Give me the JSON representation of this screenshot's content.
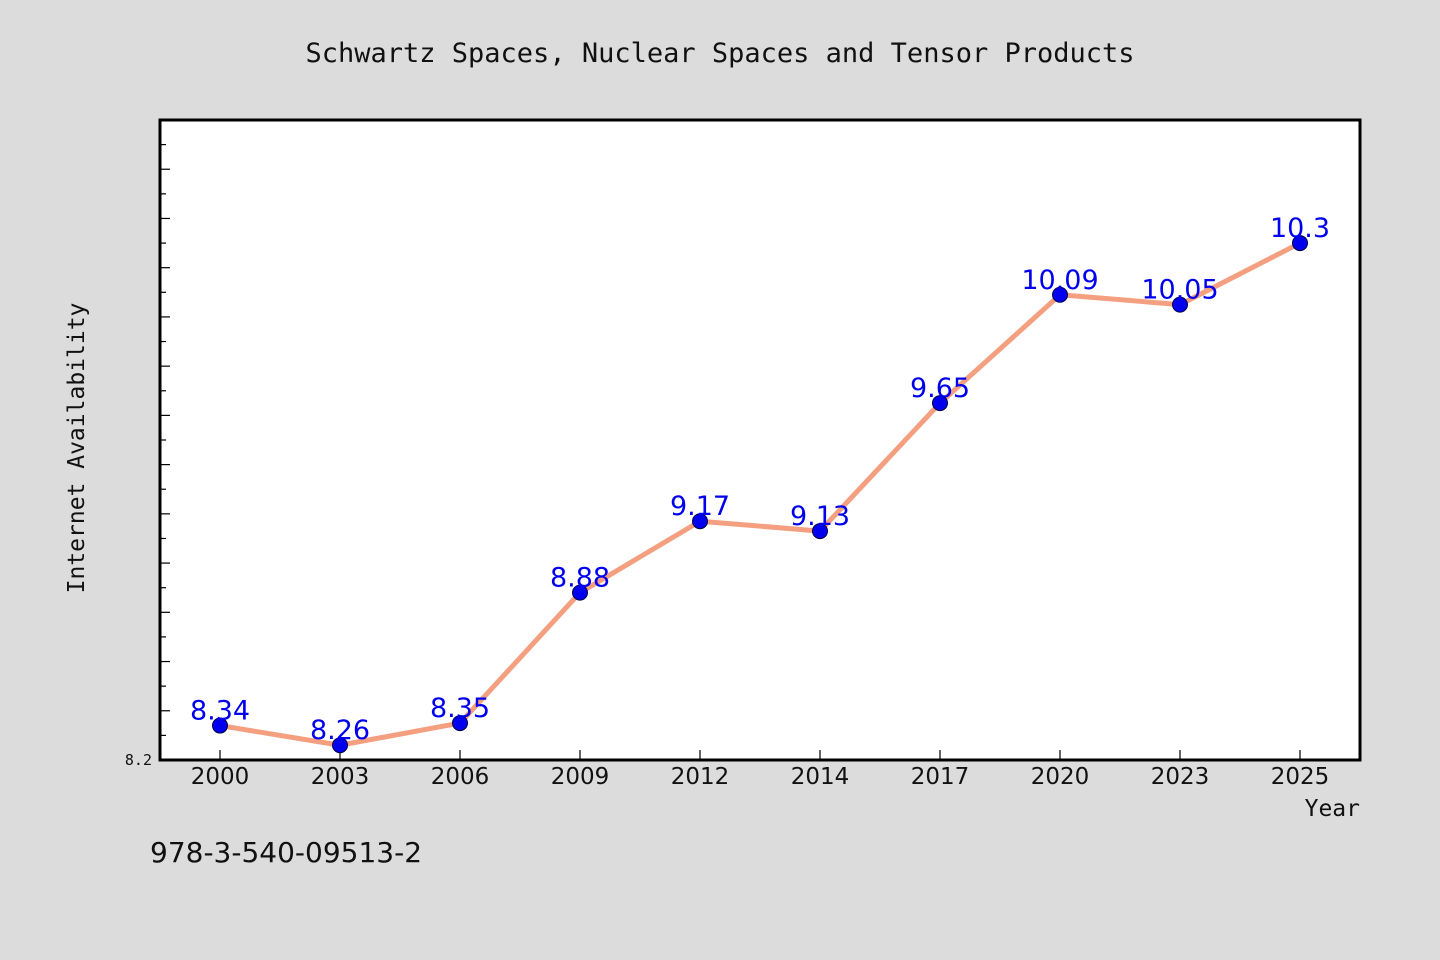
{
  "page": {
    "background": "#dcdcdc",
    "footnote": "978-3-540-09513-2"
  },
  "chart_data": {
    "type": "line",
    "title": "Schwartz Spaces, Nuclear Spaces and Tensor Products",
    "xlabel": "Year",
    "ylabel": "Internet Availability",
    "categories": [
      "2000",
      "2003",
      "2006",
      "2009",
      "2012",
      "2014",
      "2017",
      "2020",
      "2023",
      "2025"
    ],
    "series": [
      {
        "values": [
          8.34,
          8.26,
          8.35,
          8.88,
          9.17,
          9.13,
          9.65,
          10.09,
          10.05,
          10.3
        ],
        "line_color": "#f4a080",
        "marker_color": "#0000ee"
      }
    ],
    "data_labels": [
      "8.34",
      "8.26",
      "8.35",
      "8.88",
      "9.17",
      "9.13",
      "9.65",
      "10.09",
      "10.05",
      "10.3"
    ],
    "ylim": [
      8.2,
      10.8
    ],
    "yticks_labeled": [
      "8.2"
    ],
    "grid": false,
    "legend": false,
    "plot_background": "#ffffff",
    "plot_border_color": "#000000"
  }
}
